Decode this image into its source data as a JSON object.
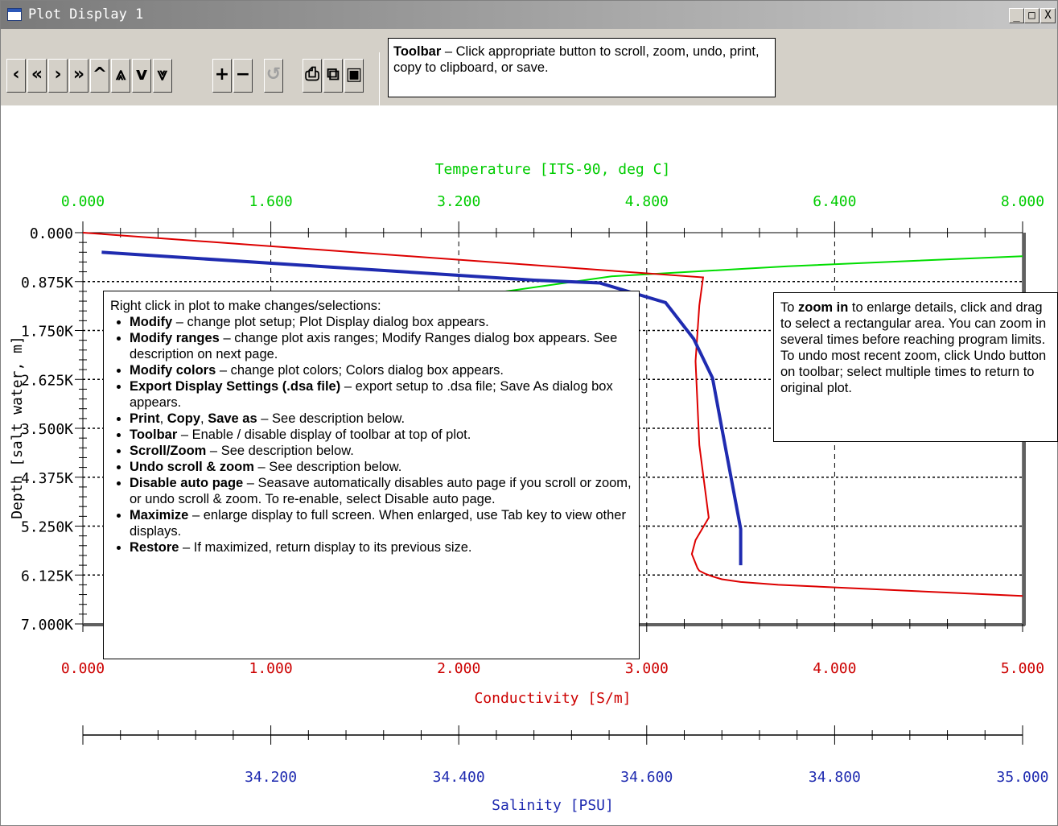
{
  "window": {
    "title": "Plot Display 1",
    "minimize": "_",
    "maximize": "□",
    "close": "X"
  },
  "toolbar": {
    "buttons": [
      {
        "name": "scroll-left-button",
        "glyph": "‹"
      },
      {
        "name": "scroll-left-page-button",
        "glyph": "«"
      },
      {
        "name": "scroll-right-button",
        "glyph": "›"
      },
      {
        "name": "scroll-right-page-button",
        "glyph": "»"
      },
      {
        "name": "scroll-up-button",
        "glyph": "^"
      },
      {
        "name": "scroll-up-page-button",
        "glyph": "⩓"
      },
      {
        "name": "scroll-down-button",
        "glyph": "v"
      },
      {
        "name": "scroll-down-page-button",
        "glyph": "⩔"
      },
      {
        "name": "zoom-in-button",
        "glyph": "+"
      },
      {
        "name": "zoom-out-button",
        "glyph": "−"
      },
      {
        "name": "undo-button",
        "glyph": "↺"
      },
      {
        "name": "print-button",
        "glyph": "⎙"
      },
      {
        "name": "copy-button",
        "glyph": "⧉"
      },
      {
        "name": "save-button",
        "glyph": "▣"
      }
    ]
  },
  "callouts": {
    "toolbar": {
      "title": "Toolbar",
      "text": " – Click appropriate button to scroll, zoom, undo, print, copy to clipboard, or save."
    },
    "zoom": {
      "pre": "To ",
      "bold": "zoom in",
      "text": " to enlarge details, click and drag to select a rectangular area. You can zoom in several times before reaching program limits. To undo most recent zoom, click Undo button on toolbar; select multiple times to return to original plot."
    },
    "menu": {
      "intro": "Right click in plot to make changes/selections:",
      "items": {
        "modify": {
          "bold": "Modify",
          "text": " – change plot setup; Plot Display dialog box appears."
        },
        "modify_ranges": {
          "bold": "Modify ranges",
          "text": " – change plot axis ranges; Modify Ranges dialog box appears. See description on next page."
        },
        "modify_colors": {
          "bold": "Modify colors",
          "text": " – change plot colors; Colors dialog box appears."
        },
        "export": {
          "bold": "Export Display Settings (.dsa file)",
          "text": " – export setup to .dsa file; Save As dialog box appears."
        },
        "print_copy_save": {
          "bold1": "Print",
          "sep1": ", ",
          "bold2": "Copy",
          "sep2": ", ",
          "bold3": "Save as",
          "text": " – See description below."
        },
        "toolbar": {
          "bold": "Toolbar",
          "text": " – Enable / disable display of toolbar at top of plot."
        },
        "scroll_zoom": {
          "bold": "Scroll/Zoom",
          "text": " – See description below."
        },
        "undo": {
          "bold": "Undo scroll & zoom",
          "text": " – See description below."
        },
        "disable_auto": {
          "bold": "Disable auto page",
          "text": " – Seasave automatically disables auto page if you scroll or zoom, or undo scroll & zoom. To re-enable, select Disable auto page."
        },
        "maximize": {
          "bold": "Maximize",
          "text": " – enlarge display to full screen. When enlarged, use Tab key to view other displays."
        },
        "restore": {
          "bold": "Restore",
          "text": " – If maximized, return display to its previous size."
        }
      }
    }
  },
  "chart_data": {
    "type": "line",
    "axes": {
      "temperature": {
        "label": "Temperature [ITS-90, deg C]",
        "ticks": [
          "0.000",
          "1.600",
          "3.200",
          "4.800",
          "6.400",
          "8.000"
        ],
        "range": [
          0,
          8
        ],
        "color": "#00cc00"
      },
      "conductivity": {
        "label": "Conductivity [S/m]",
        "ticks": [
          "0.000",
          "1.000",
          "2.000",
          "3.000",
          "4.000",
          "5.000"
        ],
        "range": [
          0,
          5
        ],
        "color": "#cc0000"
      },
      "salinity": {
        "label": "Salinity [PSU]",
        "ticks": [
          "34.200",
          "34.400",
          "34.600",
          "34.800",
          "35.000"
        ],
        "range": [
          34,
          35
        ],
        "color": "#1f2bb0"
      },
      "depth": {
        "label": "Depth [salt water, m]",
        "ticks": [
          "0.000",
          "0.875K",
          "1.750K",
          "2.625K",
          "3.500K",
          "4.375K",
          "5.250K",
          "6.125K",
          "7.000K"
        ],
        "range": [
          0,
          7000
        ],
        "color": "#000000"
      }
    },
    "series": [
      {
        "axis": "temperature",
        "color": "#00dd00",
        "points": [
          [
            3.6,
            1050
          ],
          [
            4.5,
            780
          ],
          [
            6.0,
            600
          ],
          [
            8.0,
            420
          ]
        ]
      },
      {
        "axis": "conductivity",
        "color": "#dd0000",
        "points": [
          [
            0.0,
            0
          ],
          [
            3.3,
            800
          ],
          [
            3.28,
            1300
          ],
          [
            3.26,
            2300
          ],
          [
            3.28,
            3800
          ],
          [
            3.33,
            5100
          ],
          [
            3.26,
            5500
          ],
          [
            3.24,
            5750
          ],
          [
            3.27,
            6000
          ],
          [
            3.28,
            6050
          ],
          [
            3.31,
            6100
          ],
          [
            3.35,
            6150
          ],
          [
            3.4,
            6200
          ],
          [
            3.5,
            6250
          ],
          [
            3.7,
            6300
          ],
          [
            5.0,
            6500
          ]
        ]
      },
      {
        "axis": "salinity",
        "color": "#1f2bb0",
        "points": [
          [
            34.02,
            350
          ],
          [
            34.25,
            600
          ],
          [
            34.48,
            850
          ],
          [
            34.55,
            900
          ],
          [
            34.62,
            1250
          ],
          [
            34.65,
            1900
          ],
          [
            34.67,
            2600
          ],
          [
            34.68,
            3500
          ],
          [
            34.69,
            4400
          ],
          [
            34.7,
            5300
          ],
          [
            34.7,
            5950
          ]
        ]
      }
    ]
  }
}
